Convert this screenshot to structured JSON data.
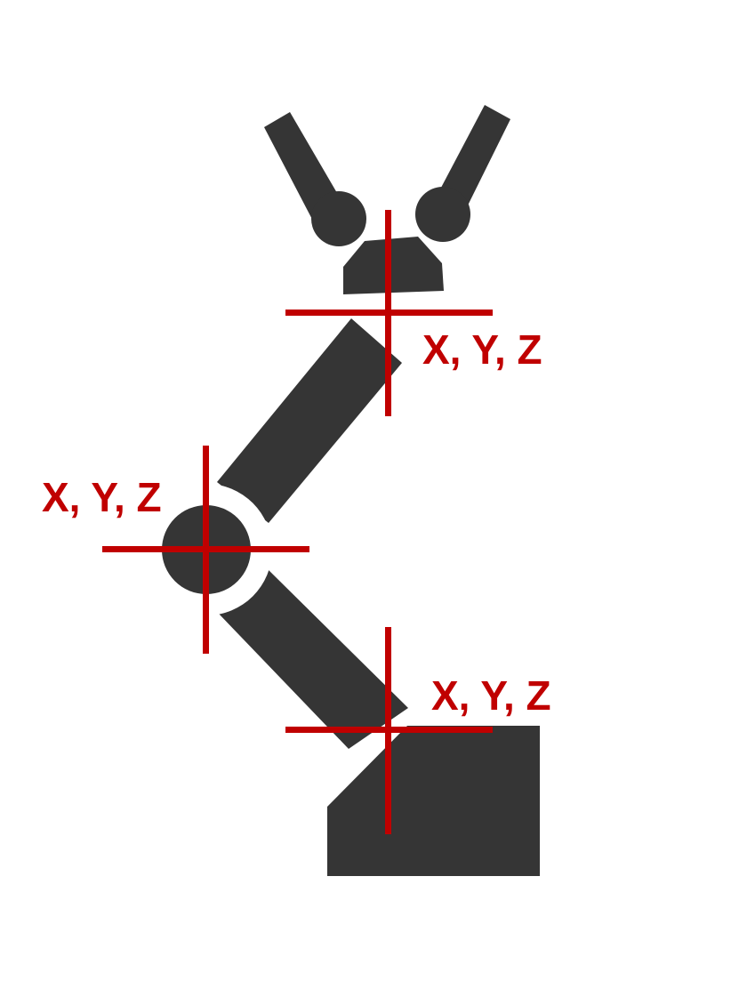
{
  "colors": {
    "robot": "#353535",
    "crosshair": "#c00000",
    "background": "#ffffff"
  },
  "labels": {
    "gripper": "X, Y, Z",
    "elbow": "X, Y, Z",
    "base": "X, Y, Z"
  }
}
